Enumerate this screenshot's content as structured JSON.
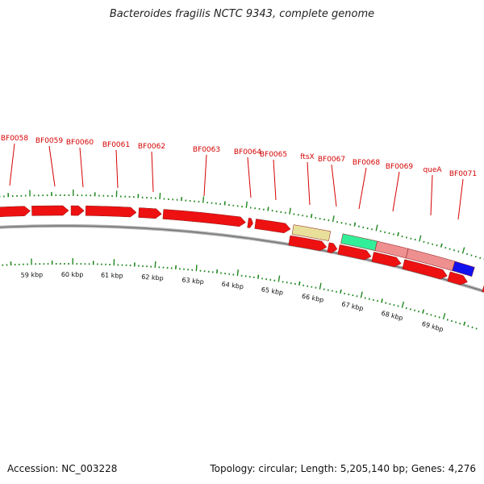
{
  "title": "Bacteroides fragilis NCTC 9343, complete genome",
  "footer": {
    "accession": "Accession: NC_003228",
    "stats": "Topology: circular; Length: 5,205,140 bp; Genes: 4,276"
  },
  "colors": {
    "cds": "#ee1111",
    "trna": "#e8e09a",
    "rrna_16s": "#33ee99",
    "rrna": "#ee9090",
    "misc": "#1111ee",
    "tick": "#228822",
    "label": "#d40000",
    "backbone": "#999999"
  },
  "gene_labels": [
    "BF0058",
    "BF0059",
    "BF0060",
    "BF0061",
    "BF0062",
    "BF0063",
    "BF0064",
    "BF0065",
    "ftsX",
    "BF0067",
    "BF0068",
    "BF0069",
    "queA",
    "BF0071"
  ],
  "kbp_labels": [
    "59 kbp",
    "60 kbp",
    "61 kbp",
    "62 kbp",
    "63 kbp",
    "64 kbp",
    "65 kbp",
    "66 kbp",
    "67 kbp",
    "68 kbp",
    "69 kbp"
  ]
}
